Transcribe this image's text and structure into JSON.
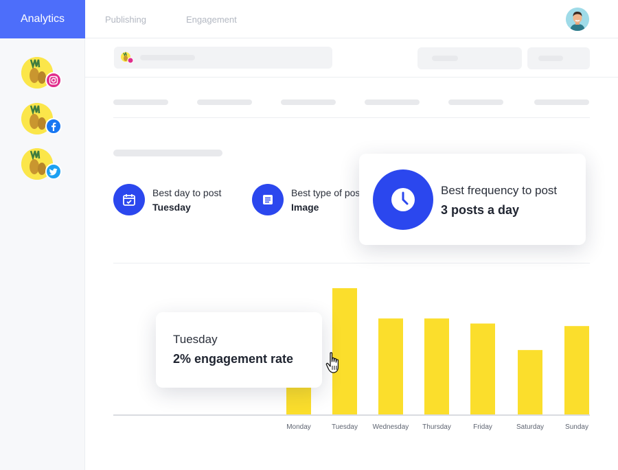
{
  "topbar": {
    "tabs": [
      {
        "label": "Analytics",
        "active": true
      },
      {
        "label": "Publishing",
        "active": false
      },
      {
        "label": "Engagement",
        "active": false
      }
    ]
  },
  "sidebar": {
    "accounts": [
      {
        "network": "instagram",
        "icon": "instagram-icon",
        "color": "#e02e8c"
      },
      {
        "network": "facebook",
        "icon": "facebook-icon",
        "color": "#1877f2"
      },
      {
        "network": "twitter",
        "icon": "twitter-icon",
        "color": "#1da1f2"
      }
    ]
  },
  "insights": {
    "best_day": {
      "label": "Best day to post",
      "value": "Tuesday",
      "icon": "calendar-icon"
    },
    "best_type": {
      "label": "Best type of post",
      "value": "Image",
      "icon": "document-icon"
    },
    "best_frequency": {
      "label": "Best frequency to post",
      "value": "3 posts a day",
      "icon": "clock-icon"
    }
  },
  "tooltip": {
    "day": "Tuesday",
    "rate": "2% engagement rate"
  },
  "colors": {
    "accent": "#4d6efa",
    "insight_blue": "#2b47ee",
    "bar": "#fbde2c"
  },
  "chart_data": {
    "type": "bar",
    "categories": [
      "Monday",
      "Tuesday",
      "Wednesday",
      "Thursday",
      "Friday",
      "Saturday",
      "Sunday"
    ],
    "values": [
      40,
      100,
      76,
      76,
      72,
      51,
      70
    ],
    "ylim": [
      0,
      100
    ],
    "grid": false,
    "legend": "none",
    "highlighted": "Tuesday"
  }
}
